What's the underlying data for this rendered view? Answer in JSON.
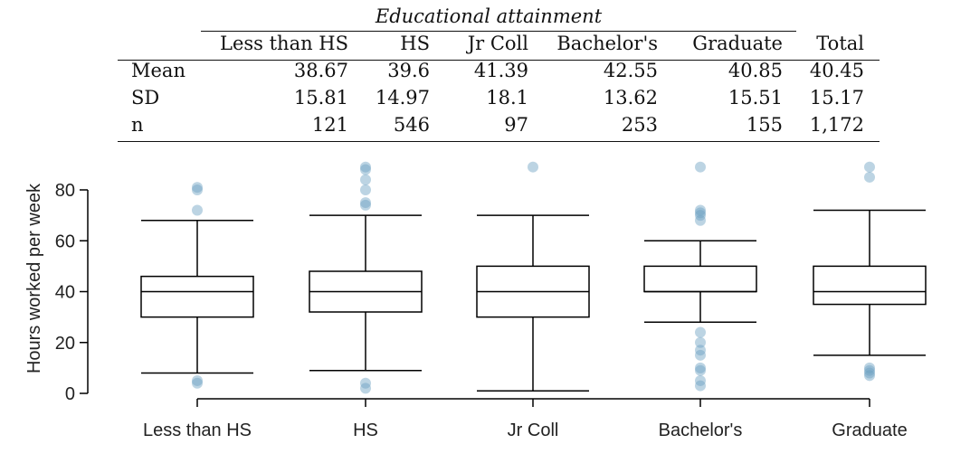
{
  "table": {
    "group_title": "Educational attainment",
    "columns": [
      "Less than HS",
      "HS",
      "Jr Coll",
      "Bachelor's",
      "Graduate",
      "Total"
    ],
    "rows": [
      {
        "label": "Mean",
        "values": [
          "38.67",
          "39.6",
          "41.39",
          "42.55",
          "40.85",
          "40.45"
        ]
      },
      {
        "label": "SD",
        "values": [
          "15.81",
          "14.97",
          "18.1",
          "13.62",
          "15.51",
          "15.17"
        ]
      },
      {
        "label": "n",
        "values": [
          "121",
          "546",
          "97",
          "253",
          "155",
          "1,172"
        ]
      }
    ]
  },
  "chart_data": {
    "type": "box",
    "ylabel": "Hours worked per week",
    "xlabel": "",
    "ylim": [
      0,
      80
    ],
    "yticks": [
      0,
      20,
      40,
      60,
      80
    ],
    "categories": [
      "Less than HS",
      "HS",
      "Jr Coll",
      "Bachelor's",
      "Graduate"
    ],
    "boxes": [
      {
        "category": "Less than HS",
        "whisker_low": 8,
        "q1": 30,
        "median": 40,
        "q3": 46,
        "whisker_high": 68,
        "outliers": [
          4,
          5,
          72,
          80,
          81
        ]
      },
      {
        "category": "HS",
        "whisker_low": 9,
        "q1": 32,
        "median": 40,
        "q3": 48,
        "whisker_high": 70,
        "outliers": [
          2,
          4,
          74,
          75,
          80,
          84,
          88,
          89
        ]
      },
      {
        "category": "Jr Coll",
        "whisker_low": 1,
        "q1": 30,
        "median": 40,
        "q3": 50,
        "whisker_high": 70,
        "outliers": [
          89
        ]
      },
      {
        "category": "Bachelor's",
        "whisker_low": 28,
        "q1": 40,
        "median": 40,
        "q3": 50,
        "whisker_high": 60,
        "outliers": [
          3,
          5,
          9,
          10,
          15,
          17,
          20,
          24,
          68,
          70,
          71,
          72,
          89
        ]
      },
      {
        "category": "Graduate",
        "whisker_low": 15,
        "q1": 35,
        "median": 40,
        "q3": 50,
        "whisker_high": 72,
        "outliers": [
          7,
          8,
          9,
          10,
          85,
          89
        ]
      }
    ],
    "colors": {
      "outlier": "#6a9fc2",
      "box": "#000000",
      "axis": "#000000"
    }
  }
}
